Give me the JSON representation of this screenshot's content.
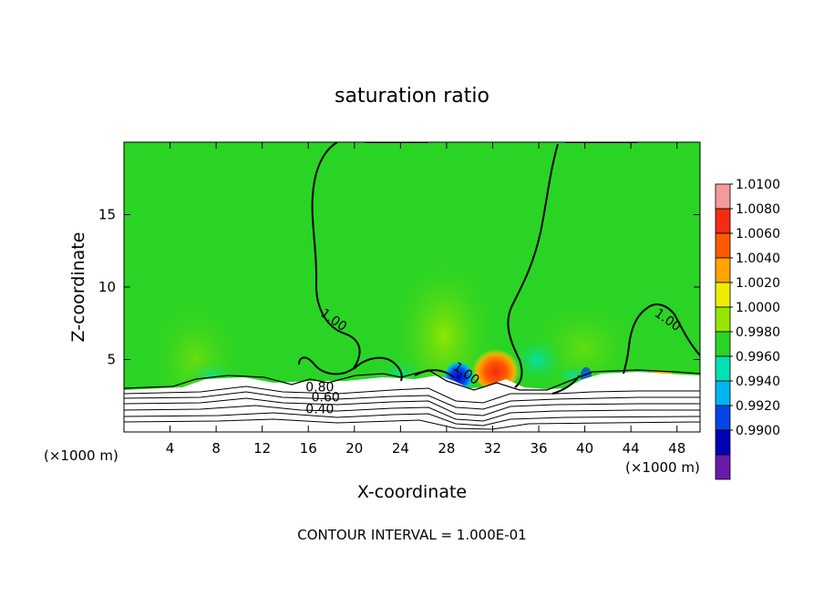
{
  "chart_data": {
    "type": "heatmap",
    "title": "saturation ratio",
    "xlabel": "X-coordinate",
    "ylabel": "Z-coordinate",
    "x_unit_left": "(×1000 m)",
    "x_unit_right": "(×1000 m)",
    "xlim": [
      0,
      50
    ],
    "ylim": [
      0,
      20
    ],
    "x_ticks": [
      4,
      8,
      12,
      16,
      20,
      24,
      28,
      32,
      36,
      40,
      44,
      48
    ],
    "y_ticks": [
      5,
      10,
      15
    ],
    "footer": "CONTOUR INTERVAL = 1.000E-01",
    "background_value": 1.0,
    "colorbar": {
      "levels": [
        {
          "value": "1.0100",
          "color": "#f59a9a"
        },
        {
          "value": "1.0080",
          "color": "#f52b12"
        },
        {
          "value": "1.0060",
          "color": "#ff5a00"
        },
        {
          "value": "1.0040",
          "color": "#ffa500"
        },
        {
          "value": "1.0020",
          "color": "#eeee00"
        },
        {
          "value": "1.0000",
          "color": "#96e600"
        },
        {
          "value": "0.9980",
          "color": "#2ad424"
        },
        {
          "value": "0.9960",
          "color": "#00e2b4"
        },
        {
          "value": "0.9940",
          "color": "#00b4f0"
        },
        {
          "value": "0.9920",
          "color": "#0046e6"
        },
        {
          "value": "0.9900",
          "color": "#0000b4"
        },
        {
          "value": "",
          "color": "#6a1aa8"
        }
      ]
    },
    "contour_labels": [
      {
        "text": "1.00",
        "x": 18,
        "y": 7.5
      },
      {
        "text": "1.00",
        "x": 29.5,
        "y": 3.8
      },
      {
        "text": "1.00",
        "x": 47,
        "y": 7.5
      },
      {
        "text": "0.80",
        "x": 17,
        "y": 2.8
      },
      {
        "text": "0.60",
        "x": 17.5,
        "y": 2.1
      },
      {
        "text": "0.40",
        "x": 17,
        "y": 1.3
      }
    ],
    "features": [
      {
        "kind": "positive",
        "x": 32,
        "z": 4.6,
        "peak": 1.008
      },
      {
        "kind": "negative",
        "x": 28.8,
        "z": 3.8,
        "peak": 0.991
      }
    ]
  }
}
